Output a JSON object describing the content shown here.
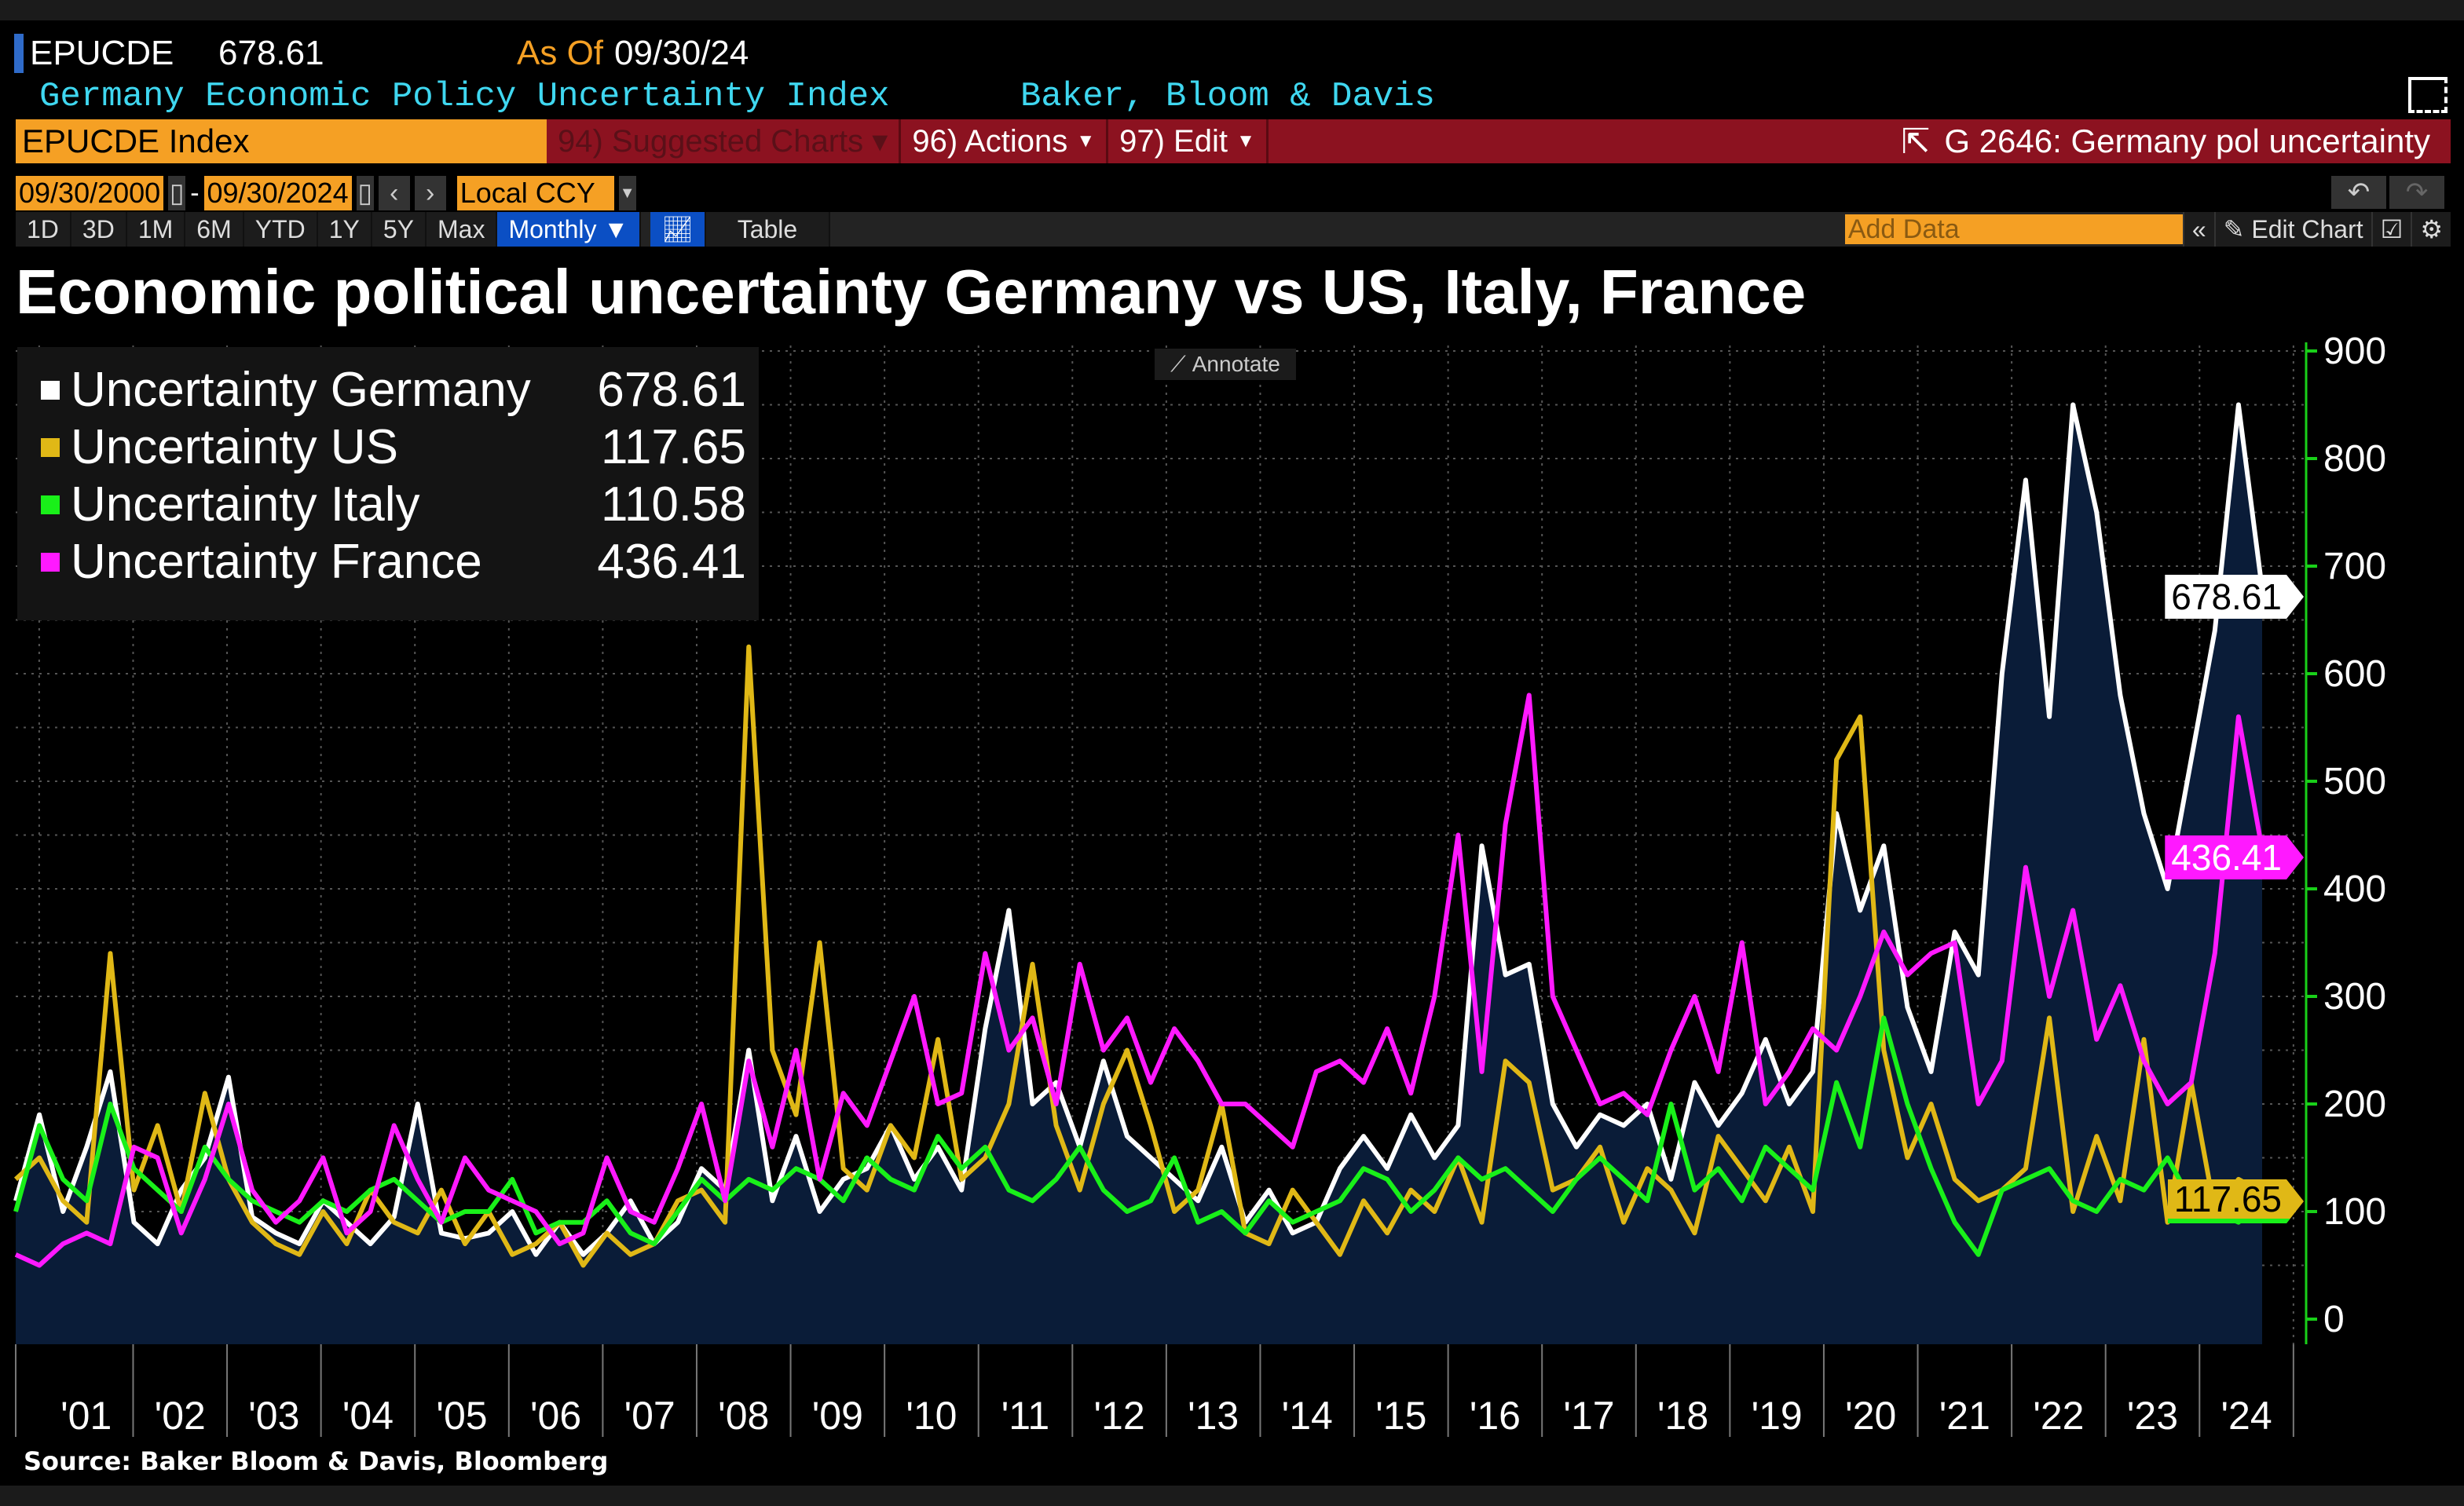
{
  "header": {
    "ticker": "EPUCDE",
    "last_value": "678.61",
    "as_of_label": "As Of",
    "as_of_date": "09/30/24",
    "description": "Germany Economic Policy Uncertainty Index",
    "source_name": "Baker, Bloom & Davis"
  },
  "command_bar": {
    "security": "EPUCDE Index",
    "suggested": "94) Suggested Charts",
    "actions": "96) Actions",
    "edit": "97) Edit",
    "chart_ref": "G 2646: Germany pol uncertainty"
  },
  "controls": {
    "start_date": "09/30/2000",
    "dash": "-",
    "end_date": "09/30/2024",
    "prev": "‹",
    "next": "›",
    "currency": "Local CCY",
    "periods": [
      "1D",
      "3D",
      "1M",
      "6M",
      "YTD",
      "1Y",
      "5Y",
      "Max"
    ],
    "frequency": "Monthly ▼",
    "table": "Table",
    "add_data_placeholder": "Add Data",
    "collapse": "«",
    "edit_chart": "Edit Chart",
    "annotate": "Annotate"
  },
  "colors": {
    "germany": "#ffffff",
    "us": "#e0b816",
    "italy": "#19f019",
    "france": "#ff19ff",
    "area": "#0a1c38",
    "axis": "#19d019",
    "command_red": "#8c1220",
    "orange": "#f5a024"
  },
  "chart_data": {
    "type": "line",
    "title": "Economic political uncertainty Germany vs US, Italy, France",
    "source": "Source: Baker Bloom & Davis, Bloomberg",
    "frequency": "quarterly samples, Q4 2000 – Q3 2024",
    "ylim": [
      0,
      900
    ],
    "yticks": [
      0,
      100,
      200,
      300,
      400,
      500,
      600,
      700,
      800,
      900
    ],
    "xlabels": [
      "'01",
      "'02",
      "'03",
      "'04",
      "'05",
      "'06",
      "'07",
      "'08",
      "'09",
      "'10",
      "'11",
      "'12",
      "'13",
      "'14",
      "'15",
      "'16",
      "'17",
      "'18",
      "'19",
      "'20",
      "'21",
      "'22",
      "'23",
      "'24"
    ],
    "grid": true,
    "legend_position": "top-left",
    "axis_position": "right",
    "series": [
      {
        "name": "Uncertainty Germany",
        "last": "678.61",
        "area": true,
        "values": [
          110,
          190,
          100,
          160,
          230,
          90,
          70,
          120,
          150,
          225,
          95,
          80,
          70,
          110,
          90,
          70,
          95,
          200,
          80,
          75,
          80,
          100,
          60,
          90,
          60,
          80,
          110,
          70,
          90,
          140,
          120,
          250,
          110,
          170,
          100,
          130,
          140,
          180,
          130,
          160,
          120,
          270,
          380,
          200,
          220,
          160,
          240,
          170,
          150,
          130,
          110,
          160,
          90,
          120,
          80,
          90,
          140,
          170,
          140,
          190,
          150,
          180,
          440,
          320,
          330,
          200,
          160,
          190,
          180,
          200,
          130,
          220,
          180,
          210,
          260,
          200,
          230,
          470,
          380,
          440,
          290,
          230,
          360,
          320,
          600,
          780,
          560,
          850,
          750,
          580,
          470,
          400,
          520,
          640,
          850,
          678.61
        ]
      },
      {
        "name": "Uncertainty US",
        "last": "117.65",
        "values": [
          130,
          150,
          110,
          90,
          340,
          120,
          180,
          100,
          210,
          130,
          90,
          70,
          60,
          100,
          70,
          120,
          90,
          80,
          120,
          70,
          100,
          60,
          70,
          90,
          50,
          80,
          60,
          70,
          110,
          120,
          90,
          625,
          250,
          190,
          350,
          140,
          120,
          180,
          150,
          260,
          130,
          150,
          200,
          330,
          180,
          120,
          200,
          250,
          180,
          100,
          120,
          200,
          80,
          70,
          120,
          90,
          60,
          110,
          80,
          120,
          100,
          150,
          90,
          240,
          220,
          120,
          130,
          160,
          90,
          140,
          120,
          80,
          170,
          140,
          110,
          160,
          100,
          520,
          560,
          250,
          150,
          200,
          130,
          110,
          120,
          140,
          280,
          100,
          170,
          110,
          260,
          90,
          220,
          100,
          130,
          117.65
        ]
      },
      {
        "name": "Uncertainty Italy",
        "last": "110.58",
        "values": [
          100,
          180,
          130,
          110,
          200,
          140,
          120,
          100,
          160,
          130,
          110,
          100,
          90,
          110,
          100,
          120,
          130,
          110,
          90,
          100,
          100,
          130,
          80,
          90,
          90,
          110,
          80,
          70,
          100,
          130,
          110,
          130,
          120,
          140,
          130,
          110,
          150,
          130,
          120,
          170,
          140,
          160,
          120,
          110,
          130,
          160,
          120,
          100,
          110,
          150,
          90,
          100,
          80,
          110,
          90,
          100,
          110,
          140,
          130,
          100,
          120,
          150,
          130,
          140,
          120,
          100,
          130,
          150,
          130,
          110,
          200,
          120,
          140,
          110,
          160,
          140,
          120,
          220,
          160,
          280,
          200,
          140,
          90,
          60,
          120,
          130,
          140,
          110,
          100,
          130,
          120,
          150,
          110,
          100,
          90,
          110.58
        ]
      },
      {
        "name": "Uncertainty France",
        "last": "436.41",
        "values": [
          60,
          50,
          70,
          80,
          70,
          160,
          150,
          80,
          130,
          200,
          120,
          90,
          110,
          150,
          80,
          100,
          180,
          130,
          90,
          150,
          120,
          110,
          100,
          70,
          80,
          150,
          100,
          90,
          140,
          200,
          110,
          240,
          160,
          250,
          130,
          210,
          180,
          240,
          300,
          200,
          210,
          340,
          250,
          280,
          200,
          330,
          250,
          280,
          220,
          270,
          240,
          200,
          200,
          180,
          160,
          230,
          240,
          220,
          270,
          210,
          300,
          450,
          230,
          460,
          580,
          300,
          250,
          200,
          210,
          190,
          250,
          300,
          230,
          350,
          200,
          230,
          270,
          250,
          300,
          360,
          320,
          340,
          350,
          200,
          240,
          420,
          300,
          380,
          260,
          310,
          240,
          200,
          220,
          340,
          560,
          436.41
        ]
      }
    ]
  }
}
